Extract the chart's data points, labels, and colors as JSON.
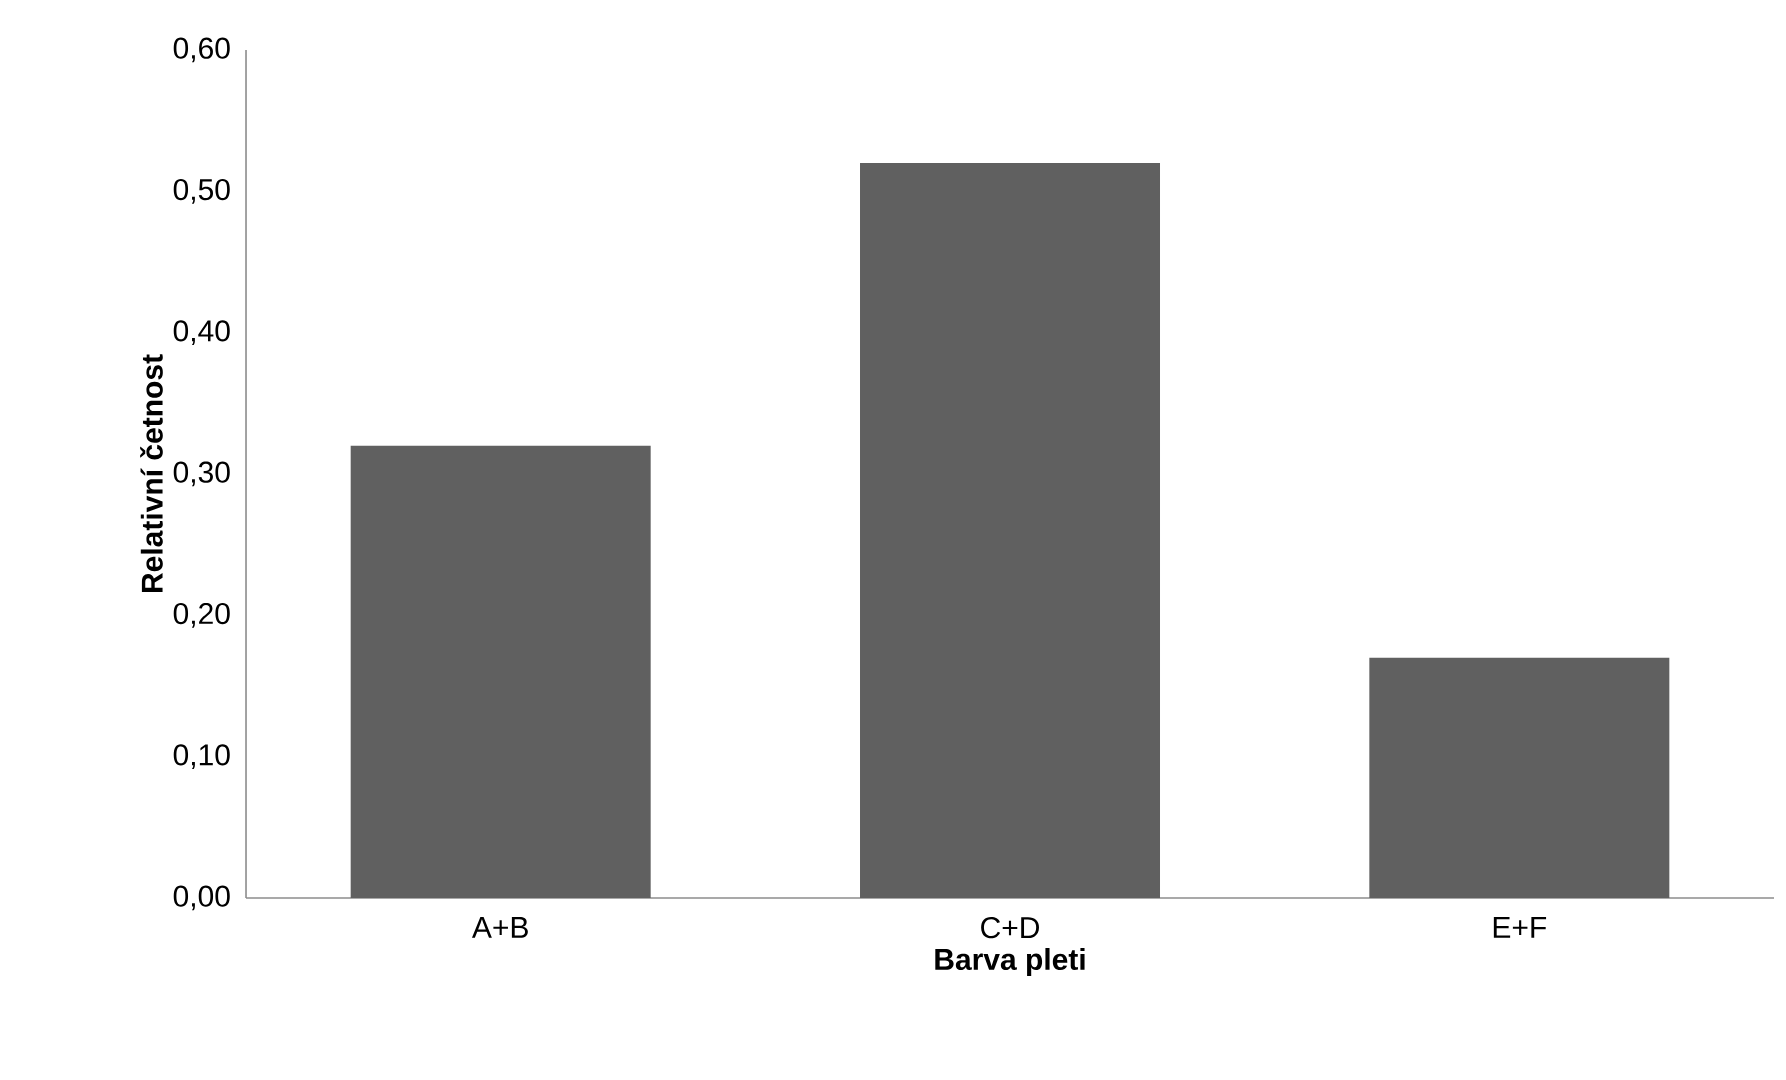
{
  "chart_data": {
    "type": "bar",
    "xlabel": "Barva pleti",
    "ylabel": "Relativní četnost",
    "categories": [
      "A+B",
      "C+D",
      "E+F"
    ],
    "values": [
      0.32,
      0.52,
      0.17
    ],
    "color": "#606060",
    "ylim": [
      0,
      0.6
    ],
    "yticks": [
      {
        "value": 0,
        "label": "0,00"
      },
      {
        "value": 0.1,
        "label": "0,10"
      },
      {
        "value": 0.2,
        "label": "0,20"
      },
      {
        "value": 0.3,
        "label": "0,30"
      },
      {
        "value": 0.4,
        "label": "0,40"
      },
      {
        "value": 0.5,
        "label": "0,50"
      },
      {
        "value": 0.6,
        "label": "0,60"
      }
    ],
    "grid": false
  }
}
